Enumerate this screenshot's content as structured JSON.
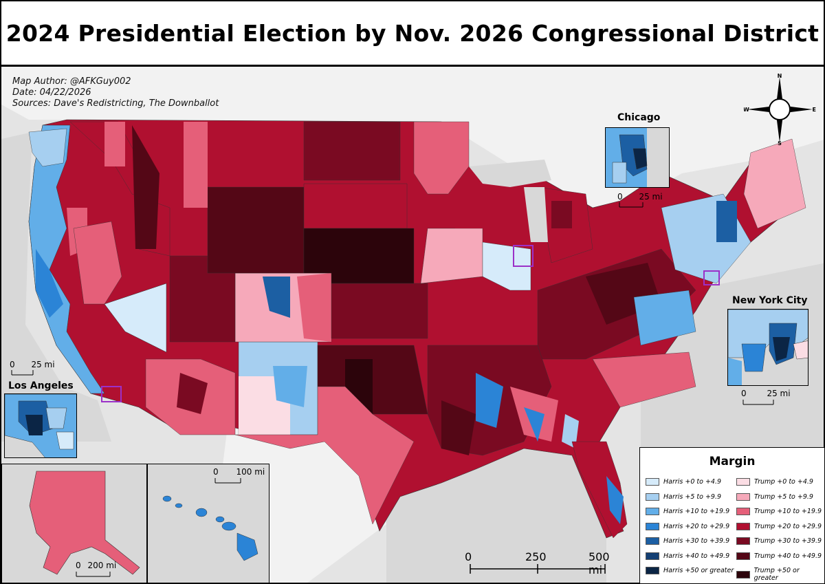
{
  "title": "2024 Presidential Election by Nov. 2026 Congressional District",
  "meta": {
    "author": "Map Author: @AFKGuy002",
    "date": "Date: 04/22/2026",
    "sources": "Sources: Dave's Redistricting, The Downballot"
  },
  "compass": {
    "n": "N",
    "s": "S",
    "e": "E",
    "w": "W"
  },
  "insets": {
    "chicago": {
      "label": "Chicago",
      "scale_zero": "0",
      "scale_val": "25 mi"
    },
    "nyc": {
      "label": "New York City",
      "scale_zero": "0",
      "scale_val": "25 mi"
    },
    "la": {
      "label": "Los Angeles",
      "scale_zero": "0",
      "scale_val": "25 mi"
    },
    "alaska": {
      "scale_zero": "0",
      "scale_val": "200 mi"
    },
    "hawaii": {
      "scale_zero": "0",
      "scale_val": "100 mi"
    }
  },
  "main_scale": {
    "t0": "0",
    "t1": "250",
    "t2": "500 mi"
  },
  "legend": {
    "title": "Margin",
    "harris": [
      {
        "label": "Harris +0 to +4.9",
        "color": "#d6ebfa"
      },
      {
        "label": "Harris +5 to +9.9",
        "color": "#a6cff0"
      },
      {
        "label": "Harris +10 to +19.9",
        "color": "#62aee8"
      },
      {
        "label": "Harris +20 to +29.9",
        "color": "#2b84d6"
      },
      {
        "label": "Harris +30 to +39.9",
        "color": "#1c5fa3"
      },
      {
        "label": "Harris +40 to +49.9",
        "color": "#143f73"
      },
      {
        "label": "Harris +50 or greater",
        "color": "#0b2545"
      }
    ],
    "trump": [
      {
        "label": "Trump +0 to +4.9",
        "color": "#fbdde4"
      },
      {
        "label": "Trump +5 to +9.9",
        "color": "#f6a9ba"
      },
      {
        "label": "Trump +10 to +19.9",
        "color": "#e55f79"
      },
      {
        "label": "Trump +20 to +29.9",
        "color": "#b01030"
      },
      {
        "label": "Trump +30 to +39.9",
        "color": "#7a0a22"
      },
      {
        "label": "Trump +40 to +49.9",
        "color": "#540716"
      },
      {
        "label": "Trump +50 or greater",
        "color": "#2c040b"
      }
    ]
  }
}
